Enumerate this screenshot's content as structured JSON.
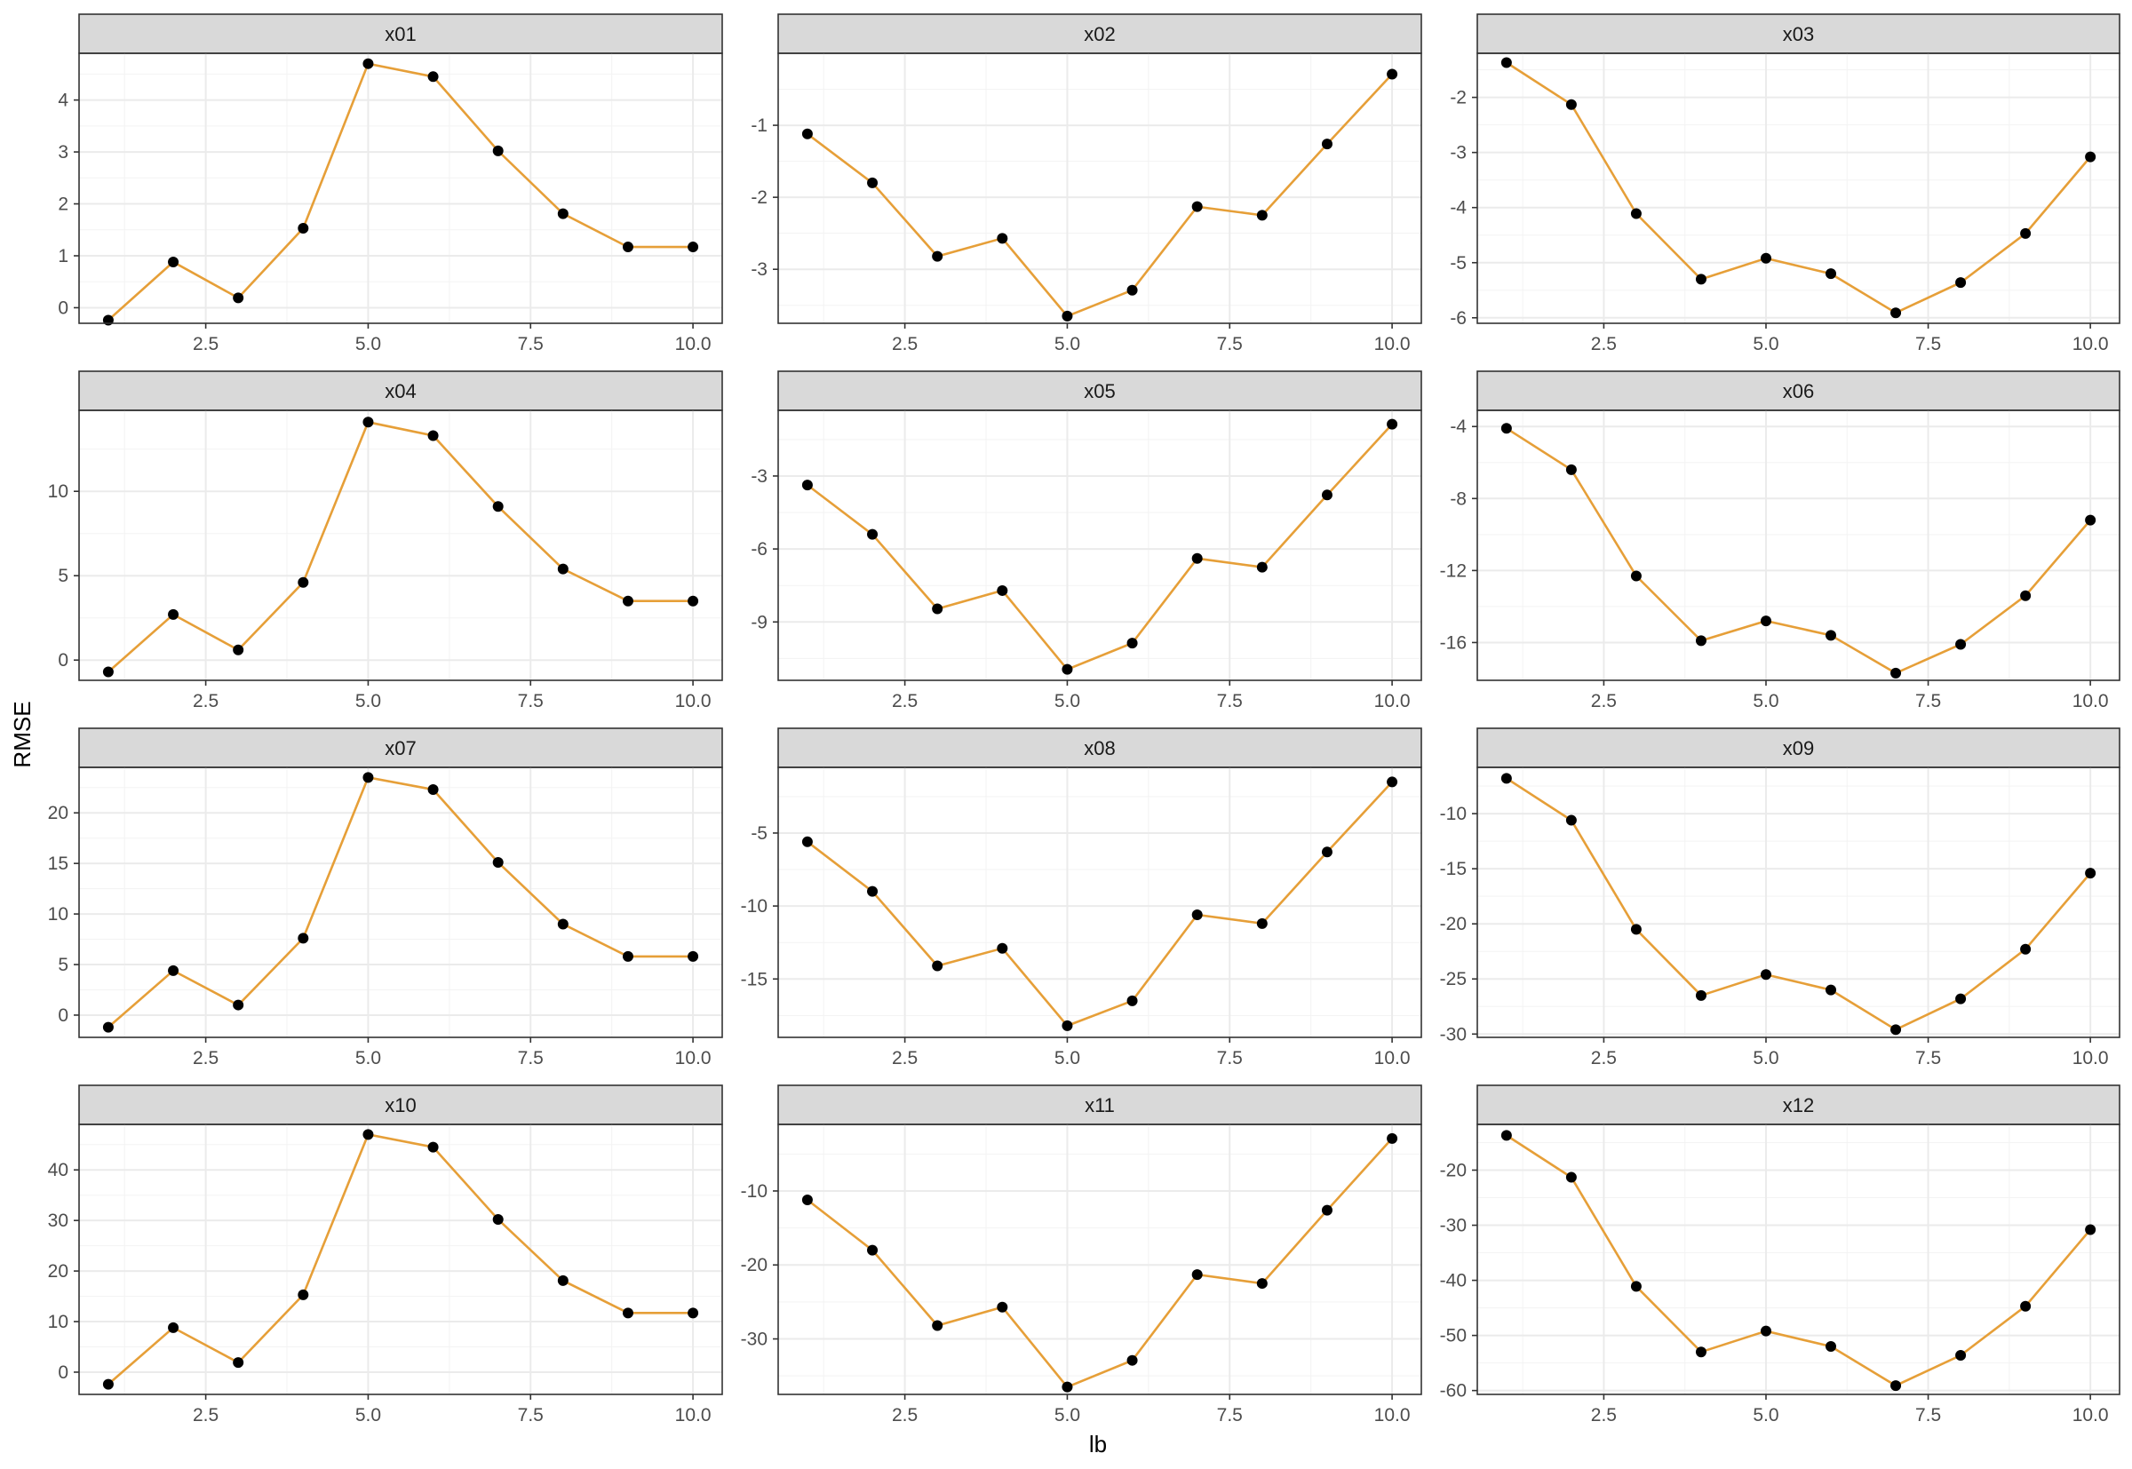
{
  "chart_data": {
    "type": "line",
    "layout": "facet_wrap",
    "xlabel": "lb",
    "ylabel": "RMSE",
    "line_color": "#e69f38",
    "point_color": "#000000",
    "x": [
      1,
      2,
      3,
      4,
      5,
      6,
      7,
      8,
      9,
      10
    ],
    "x_ticks": [
      2.5,
      5.0,
      7.5,
      10.0
    ],
    "x_tick_labels": [
      "2.5",
      "5.0",
      "7.5",
      "10.0"
    ],
    "xlim": [
      0.55,
      10.45
    ],
    "panels": [
      {
        "name": "x01",
        "values": [
          -0.24,
          0.88,
          0.19,
          1.53,
          4.7,
          4.45,
          3.02,
          1.81,
          1.17,
          1.17
        ],
        "ylim": [
          -0.3,
          4.9
        ],
        "y_ticks": [
          0,
          1,
          2,
          3,
          4
        ],
        "y_tick_labels": [
          "0",
          "1",
          "2",
          "3",
          "4"
        ]
      },
      {
        "name": "x02",
        "values": [
          -1.12,
          -1.8,
          -2.82,
          -2.57,
          -3.65,
          -3.29,
          -2.13,
          -2.25,
          -1.26,
          -0.29
        ],
        "ylim": [
          -3.75,
          -0.0
        ],
        "y_ticks": [
          -3,
          -2,
          -1
        ],
        "y_tick_labels": [
          "-3",
          "-2",
          "-1"
        ]
      },
      {
        "name": "x03",
        "values": [
          -1.37,
          -2.13,
          -4.11,
          -5.3,
          -4.92,
          -5.2,
          -5.91,
          -5.36,
          -4.47,
          -3.08
        ],
        "ylim": [
          -6.1,
          -1.2
        ],
        "y_ticks": [
          -6,
          -5,
          -4,
          -3,
          -2
        ],
        "y_tick_labels": [
          "-6",
          "-5",
          "-4",
          "-3",
          "-2"
        ]
      },
      {
        "name": "x04",
        "values": [
          -0.7,
          2.7,
          0.6,
          4.6,
          14.1,
          13.3,
          9.1,
          5.4,
          3.5,
          3.5
        ],
        "ylim": [
          -1.2,
          14.8
        ],
        "y_ticks": [
          0,
          5,
          10
        ],
        "y_tick_labels": [
          "0",
          "5",
          "10"
        ]
      },
      {
        "name": "x05",
        "values": [
          -3.37,
          -5.4,
          -8.46,
          -7.71,
          -10.95,
          -9.87,
          -6.39,
          -6.75,
          -3.78,
          -0.87
        ],
        "ylim": [
          -11.4,
          -0.3
        ],
        "y_ticks": [
          -9,
          -6,
          -3
        ],
        "y_tick_labels": [
          "-9",
          "-6",
          "-3"
        ]
      },
      {
        "name": "x06",
        "values": [
          -4.1,
          -6.4,
          -12.3,
          -15.9,
          -14.8,
          -15.6,
          -17.7,
          -16.1,
          -13.4,
          -9.2
        ],
        "ylim": [
          -18.1,
          -3.1
        ],
        "y_ticks": [
          -16,
          -12,
          -8,
          -4
        ],
        "y_tick_labels": [
          "-16",
          "-12",
          "-8",
          "-4"
        ]
      },
      {
        "name": "x07",
        "values": [
          -1.2,
          4.4,
          1.0,
          7.6,
          23.5,
          22.3,
          15.1,
          9.0,
          5.8,
          5.8
        ],
        "ylim": [
          -2.2,
          24.5
        ],
        "y_ticks": [
          0,
          5,
          10,
          15,
          20
        ],
        "y_tick_labels": [
          "0",
          "5",
          "10",
          "15",
          "20"
        ]
      },
      {
        "name": "x08",
        "values": [
          -5.6,
          -9.0,
          -14.1,
          -12.9,
          -18.2,
          -16.5,
          -10.6,
          -11.2,
          -6.3,
          -1.5
        ],
        "ylim": [
          -19.0,
          -0.5
        ],
        "y_ticks": [
          -15,
          -10,
          -5
        ],
        "y_tick_labels": [
          "-15",
          "-10",
          "-5"
        ]
      },
      {
        "name": "x09",
        "values": [
          -6.8,
          -10.6,
          -20.5,
          -26.5,
          -24.6,
          -26.0,
          -29.6,
          -26.8,
          -22.3,
          -15.4
        ],
        "ylim": [
          -30.3,
          -5.8
        ],
        "y_ticks": [
          -30,
          -25,
          -20,
          -15,
          -10
        ],
        "y_tick_labels": [
          "-30",
          "-25",
          "-20",
          "-15",
          "-10"
        ]
      },
      {
        "name": "x10",
        "values": [
          -2.4,
          8.8,
          1.9,
          15.3,
          47.0,
          44.5,
          30.2,
          18.1,
          11.7,
          11.7
        ],
        "ylim": [
          -4.4,
          49.0
        ],
        "y_ticks": [
          0,
          10,
          20,
          30,
          40
        ],
        "y_tick_labels": [
          "0",
          "10",
          "20",
          "30",
          "40"
        ]
      },
      {
        "name": "x11",
        "values": [
          -11.2,
          -18.0,
          -28.2,
          -25.7,
          -36.5,
          -32.9,
          -21.3,
          -22.5,
          -12.6,
          -2.9
        ],
        "ylim": [
          -37.5,
          -1.0
        ],
        "y_ticks": [
          -30,
          -20,
          -10
        ],
        "y_tick_labels": [
          "-30",
          "-20",
          "-10"
        ]
      },
      {
        "name": "x12",
        "values": [
          -13.7,
          -21.3,
          -41.1,
          -53.0,
          -49.2,
          -52.0,
          -59.1,
          -53.6,
          -44.7,
          -30.8
        ],
        "ylim": [
          -60.7,
          -11.7
        ],
        "y_ticks": [
          -60,
          -50,
          -40,
          -30,
          -20
        ],
        "y_tick_labels": [
          "-60",
          "-50",
          "-40",
          "-30",
          "-20"
        ]
      }
    ]
  }
}
